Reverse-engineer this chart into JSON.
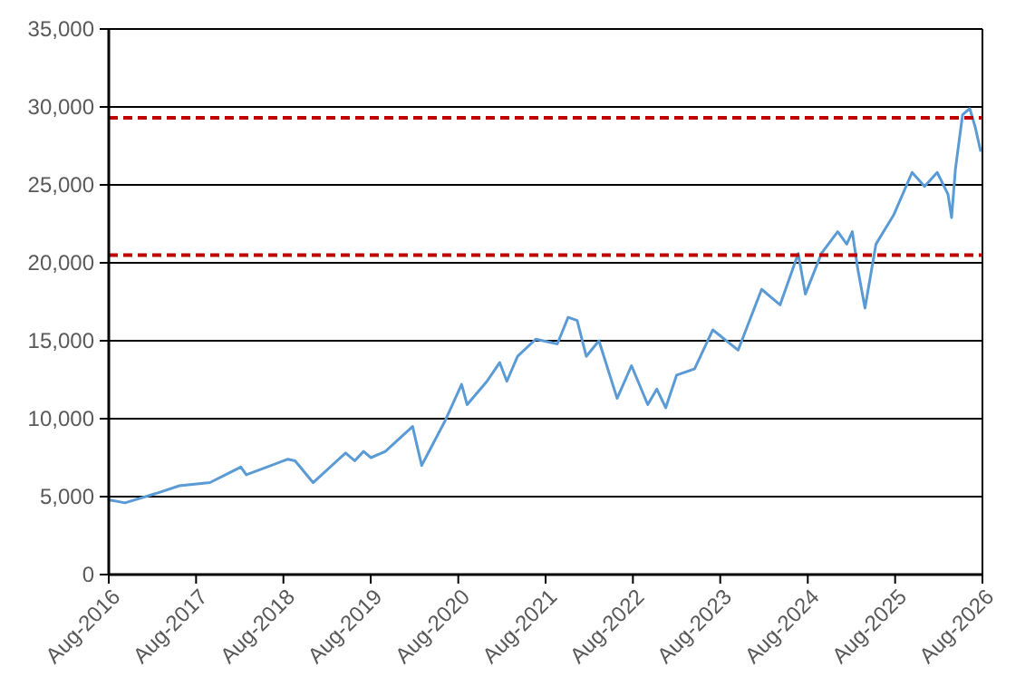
{
  "chart_data": {
    "type": "line",
    "x": [
      "2016-08-01",
      "2016-10-08",
      "2017-02-14",
      "2017-05-23",
      "2017-09-28",
      "2018-02-04",
      "2018-02-27",
      "2018-08-20",
      "2018-09-19",
      "2018-12-03",
      "2019-04-18",
      "2019-05-26",
      "2019-07-02",
      "2019-08-02",
      "2019-10-01",
      "2020-01-23",
      "2020-03-01",
      "2020-06-08",
      "2020-08-15",
      "2020-09-07",
      "2020-11-29",
      "2021-01-21",
      "2021-02-20",
      "2021-04-06",
      "2021-06-21",
      "2021-09-19",
      "2021-11-03",
      "2021-12-11",
      "2022-01-18",
      "2022-03-12",
      "2022-05-27",
      "2022-07-26",
      "2022-10-02",
      "2022-11-09",
      "2022-12-16",
      "2023-01-31",
      "2023-04-16",
      "2023-07-01",
      "2023-10-15",
      "2024-01-21",
      "2024-04-07",
      "2024-06-22",
      "2024-07-22",
      "2024-09-27",
      "2024-12-04",
      "2025-01-11",
      "2025-02-03",
      "2025-02-26",
      "2025-03-28",
      "2025-05-13",
      "2025-07-27",
      "2025-10-11",
      "2025-12-02",
      "2026-01-24",
      "2026-03-10",
      "2026-03-25",
      "2026-04-10",
      "2026-05-10",
      "2026-06-09",
      "2026-07-02",
      "2026-07-24"
    ],
    "series": [
      {
        "color": "#5b9bd5",
        "values": [
          4800,
          4600,
          5200,
          5700,
          5900,
          6900,
          6400,
          7400,
          7300,
          5900,
          7800,
          7300,
          7900,
          7500,
          7900,
          9500,
          7000,
          9900,
          12200,
          10900,
          12400,
          13600,
          12400,
          14000,
          15100,
          14800,
          16500,
          16300,
          14000,
          15000,
          11300,
          13400,
          10900,
          11900,
          10700,
          12800,
          13200,
          15700,
          14400,
          18300,
          17300,
          20600,
          18000,
          20600,
          22000,
          21200,
          22000,
          19600,
          17100,
          21200,
          23100,
          25800,
          24900,
          25800,
          24400,
          22900,
          26000,
          29500,
          29900,
          28700,
          27200
        ]
      }
    ],
    "xlim": [
      "2016-08-01",
      "2026-08-01"
    ],
    "xticks": [
      {
        "value": "2016-08-01",
        "label": "Aug-2016"
      },
      {
        "value": "2017-08-01",
        "label": "Aug-2017"
      },
      {
        "value": "2018-08-01",
        "label": "Aug-2018"
      },
      {
        "value": "2019-08-01",
        "label": "Aug-2019"
      },
      {
        "value": "2020-08-01",
        "label": "Aug-2020"
      },
      {
        "value": "2021-08-01",
        "label": "Aug-2021"
      },
      {
        "value": "2022-08-01",
        "label": "Aug-2022"
      },
      {
        "value": "2023-08-01",
        "label": "Aug-2023"
      },
      {
        "value": "2024-08-01",
        "label": "Aug-2024"
      },
      {
        "value": "2025-08-01",
        "label": "Aug-2025"
      },
      {
        "value": "2026-08-01",
        "label": "Aug-2026"
      }
    ],
    "ylim": [
      0,
      35000
    ],
    "yticks": [
      {
        "value": 0,
        "label": "0"
      },
      {
        "value": 5000,
        "label": "5,000"
      },
      {
        "value": 10000,
        "label": "10,000"
      },
      {
        "value": 15000,
        "label": "15,000"
      },
      {
        "value": 20000,
        "label": "20,000"
      },
      {
        "value": 25000,
        "label": "25,000"
      },
      {
        "value": 30000,
        "label": "30,000"
      },
      {
        "value": 35000,
        "label": "35,000"
      }
    ],
    "grid": "y",
    "marker": "none",
    "line_style": "solid",
    "ref_lines": [
      {
        "axis": "y",
        "value": 29300,
        "color": "#c00000",
        "line_style": "dashed"
      },
      {
        "axis": "y",
        "value": 20500,
        "color": "#c00000",
        "line_style": "dashed"
      }
    ]
  }
}
